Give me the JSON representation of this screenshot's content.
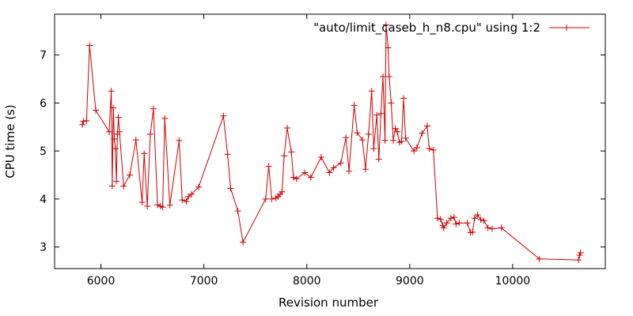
{
  "chart_data": {
    "type": "line",
    "title": "",
    "xlabel": "Revision number",
    "ylabel": "CPU time (s)",
    "xlim": [
      5550,
      10900
    ],
    "ylim": [
      2.55,
      7.85
    ],
    "xticks": [
      6000,
      7000,
      8000,
      9000,
      10000
    ],
    "yticks": [
      3,
      4,
      5,
      6,
      7
    ],
    "grid": false,
    "legend_position": "top-right",
    "series": [
      {
        "name": "\"auto/limit_caseb_h_n8.cpu\" using 1:2",
        "color": "#cc0000",
        "marker": "plus",
        "points": [
          [
            5820,
            5.55
          ],
          [
            5830,
            5.62
          ],
          [
            5860,
            5.63
          ],
          [
            5890,
            7.2
          ],
          [
            5950,
            5.85
          ],
          [
            6080,
            5.4
          ],
          [
            6100,
            6.25
          ],
          [
            6110,
            4.27
          ],
          [
            6120,
            5.9
          ],
          [
            6130,
            5.25
          ],
          [
            6140,
            5.05
          ],
          [
            6150,
            4.37
          ],
          [
            6160,
            5.35
          ],
          [
            6170,
            5.7
          ],
          [
            6180,
            5.4
          ],
          [
            6220,
            4.27
          ],
          [
            6280,
            4.5
          ],
          [
            6340,
            5.23
          ],
          [
            6400,
            3.93
          ],
          [
            6420,
            4.95
          ],
          [
            6450,
            3.85
          ],
          [
            6480,
            5.35
          ],
          [
            6510,
            5.88
          ],
          [
            6550,
            3.88
          ],
          [
            6580,
            3.85
          ],
          [
            6600,
            3.83
          ],
          [
            6620,
            5.68
          ],
          [
            6670,
            3.87
          ],
          [
            6760,
            5.22
          ],
          [
            6790,
            3.98
          ],
          [
            6830,
            3.95
          ],
          [
            6850,
            4.05
          ],
          [
            6880,
            4.1
          ],
          [
            6950,
            4.25
          ],
          [
            7190,
            5.73
          ],
          [
            7230,
            4.93
          ],
          [
            7260,
            4.22
          ],
          [
            7330,
            3.75
          ],
          [
            7380,
            3.1
          ],
          [
            7600,
            4.0
          ],
          [
            7630,
            4.68
          ],
          [
            7660,
            4.0
          ],
          [
            7700,
            4.02
          ],
          [
            7720,
            4.05
          ],
          [
            7740,
            4.1
          ],
          [
            7760,
            4.15
          ],
          [
            7780,
            4.9
          ],
          [
            7810,
            5.48
          ],
          [
            7850,
            4.98
          ],
          [
            7870,
            4.45
          ],
          [
            7900,
            4.42
          ],
          [
            7980,
            4.55
          ],
          [
            8040,
            4.45
          ],
          [
            8140,
            4.87
          ],
          [
            8220,
            4.55
          ],
          [
            8260,
            4.65
          ],
          [
            8330,
            4.75
          ],
          [
            8380,
            5.28
          ],
          [
            8410,
            4.58
          ],
          [
            8460,
            5.95
          ],
          [
            8490,
            5.38
          ],
          [
            8540,
            5.23
          ],
          [
            8570,
            4.62
          ],
          [
            8600,
            5.35
          ],
          [
            8630,
            6.25
          ],
          [
            8650,
            5.05
          ],
          [
            8680,
            5.75
          ],
          [
            8700,
            4.83
          ],
          [
            8720,
            5.78
          ],
          [
            8740,
            6.55
          ],
          [
            8760,
            5.22
          ],
          [
            8770,
            7.63
          ],
          [
            8790,
            7.15
          ],
          [
            8800,
            6.55
          ],
          [
            8820,
            6.0
          ],
          [
            8840,
            5.22
          ],
          [
            8860,
            5.47
          ],
          [
            8880,
            5.4
          ],
          [
            8900,
            5.18
          ],
          [
            8920,
            5.2
          ],
          [
            8940,
            6.1
          ],
          [
            8960,
            5.27
          ],
          [
            9040,
            5.0
          ],
          [
            9070,
            5.07
          ],
          [
            9120,
            5.37
          ],
          [
            9170,
            5.52
          ],
          [
            9190,
            5.05
          ],
          [
            9230,
            5.02
          ],
          [
            9270,
            3.6
          ],
          [
            9300,
            3.58
          ],
          [
            9320,
            3.45
          ],
          [
            9330,
            3.4
          ],
          [
            9360,
            3.5
          ],
          [
            9400,
            3.6
          ],
          [
            9430,
            3.62
          ],
          [
            9450,
            3.48
          ],
          [
            9480,
            3.5
          ],
          [
            9560,
            3.5
          ],
          [
            9590,
            3.3
          ],
          [
            9610,
            3.31
          ],
          [
            9630,
            3.6
          ],
          [
            9660,
            3.67
          ],
          [
            9690,
            3.57
          ],
          [
            9720,
            3.55
          ],
          [
            9760,
            3.4
          ],
          [
            9800,
            3.38
          ],
          [
            9890,
            3.4
          ],
          [
            10260,
            2.75
          ],
          [
            10640,
            2.73
          ],
          [
            10650,
            2.83
          ],
          [
            10660,
            2.88
          ]
        ]
      }
    ]
  }
}
